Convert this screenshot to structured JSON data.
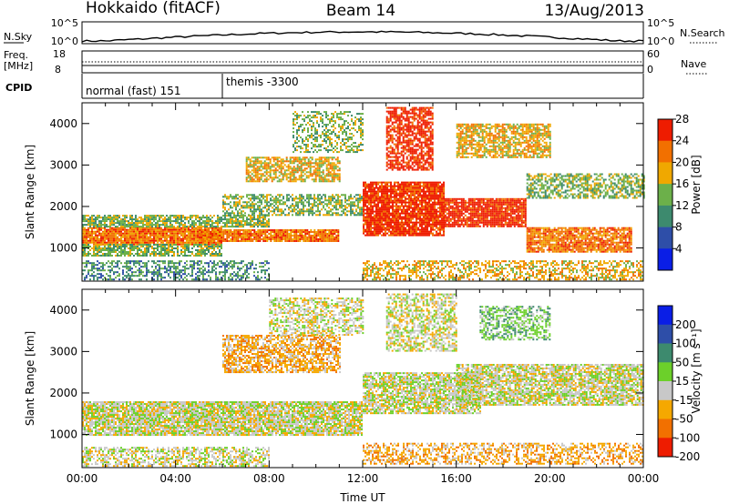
{
  "header": {
    "title_left": "Hokkaido (fitACF)",
    "title_center": "Beam 14",
    "title_right": "13/Aug/2013"
  },
  "strip_nsky": {
    "label": "N.Sky",
    "tick_top": "10^5",
    "tick_bottom": "10^0",
    "right_tick_top": "10^5",
    "right_tick_bottom": "10^0",
    "right_label": "N.Search"
  },
  "strip_freq": {
    "label_line1": "Freq.",
    "label_line2": "[MHz]",
    "tick_top": "18",
    "tick_bottom": "8",
    "right_tick_top": "60",
    "right_tick_bottom": "0",
    "right_label": "Nave"
  },
  "strip_cpid": {
    "label": "CPID",
    "segments": [
      {
        "text": "normal (fast) 151",
        "start_hour": 0
      },
      {
        "text": "themis -3300",
        "start_hour": 6
      }
    ]
  },
  "chart_data": [
    {
      "type": "heatmap",
      "name": "power-panel",
      "ylabel": "Slant Range [km]",
      "ylim": [
        200,
        4500
      ],
      "yticks": [
        "1000",
        "2000",
        "3000",
        "4000"
      ],
      "ytick_values": [
        1000,
        2000,
        3000,
        4000
      ],
      "xlim": [
        0,
        24
      ],
      "colorbar_label": "Power [dB]",
      "colorbar_ticks": [
        "4",
        "8",
        "12",
        "16",
        "20",
        "24",
        "28"
      ],
      "colorbar_colors": [
        "#0a1ee6",
        "#2e4ea8",
        "#3d8a6e",
        "#6cb04a",
        "#f0a800",
        "#f27000",
        "#ee1c00"
      ],
      "scatter_regions": [
        {
          "hours": [
            0,
            6
          ],
          "range": [
            1100,
            1500
          ],
          "level": 5,
          "density": 0.95
        },
        {
          "hours": [
            0,
            8
          ],
          "range": [
            1500,
            1800
          ],
          "level": 3,
          "density": 0.75
        },
        {
          "hours": [
            0,
            6
          ],
          "range": [
            800,
            1100
          ],
          "level": 3,
          "density": 0.75
        },
        {
          "hours": [
            0,
            8
          ],
          "range": [
            250,
            700
          ],
          "level": 2,
          "density": 0.5
        },
        {
          "hours": [
            5,
            11
          ],
          "range": [
            1150,
            1450
          ],
          "level": 5,
          "density": 0.9
        },
        {
          "hours": [
            6,
            12
          ],
          "range": [
            1800,
            2300
          ],
          "level": 3,
          "density": 0.6
        },
        {
          "hours": [
            7,
            11
          ],
          "range": [
            2600,
            3200
          ],
          "level": 4,
          "density": 0.7
        },
        {
          "hours": [
            9,
            12
          ],
          "range": [
            3300,
            4300
          ],
          "level": 3,
          "density": 0.45
        },
        {
          "hours": [
            12,
            15.5
          ],
          "range": [
            1300,
            2600
          ],
          "level": 6,
          "density": 0.9
        },
        {
          "hours": [
            13,
            15
          ],
          "range": [
            2900,
            4400
          ],
          "level": 6,
          "density": 0.7
        },
        {
          "hours": [
            15.5,
            19
          ],
          "range": [
            1500,
            2200
          ],
          "level": 6,
          "density": 0.9
        },
        {
          "hours": [
            19,
            23.5
          ],
          "range": [
            900,
            1500
          ],
          "level": 5,
          "density": 0.85
        },
        {
          "hours": [
            16,
            20
          ],
          "range": [
            3200,
            4000
          ],
          "level": 4,
          "density": 0.7
        },
        {
          "hours": [
            19,
            24
          ],
          "range": [
            2200,
            2800
          ],
          "level": 3,
          "density": 0.6
        },
        {
          "hours": [
            12,
            24
          ],
          "range": [
            250,
            700
          ],
          "level": 4,
          "density": 0.5
        }
      ]
    },
    {
      "type": "heatmap",
      "name": "velocity-panel",
      "ylabel": "Slant Range [km]",
      "ylim": [
        200,
        4500
      ],
      "yticks": [
        "1000",
        "2000",
        "3000",
        "4000"
      ],
      "ytick_values": [
        1000,
        2000,
        3000,
        4000
      ],
      "xlim": [
        0,
        24
      ],
      "xlabel": "Time UT",
      "xticks": [
        "00:00",
        "04:00",
        "08:00",
        "12:00",
        "16:00",
        "20:00",
        "00:00"
      ],
      "xtick_values": [
        0,
        4,
        8,
        12,
        16,
        20,
        24
      ],
      "colorbar_label": "Velocity [m s⁻¹]",
      "colorbar_ticks": [
        "200",
        "100",
        "50",
        "15",
        "-15",
        "-50",
        "-100",
        "-200"
      ],
      "colorbar_colors": [
        "#0a1ee6",
        "#2e4ea8",
        "#3d8a6e",
        "#6cd02a",
        "#c8c8c8",
        "#f5a800",
        "#f27000",
        "#ee1c00"
      ],
      "scatter_regions": [
        {
          "hours": [
            0,
            12
          ],
          "range": [
            1000,
            1800
          ],
          "level": 4,
          "density": 0.9
        },
        {
          "hours": [
            0,
            8
          ],
          "range": [
            250,
            700
          ],
          "level": 4,
          "density": 0.6
        },
        {
          "hours": [
            6,
            11
          ],
          "range": [
            2500,
            3400
          ],
          "level": 5,
          "density": 0.7
        },
        {
          "hours": [
            8,
            12
          ],
          "range": [
            3400,
            4300
          ],
          "level": 4,
          "density": 0.55
        },
        {
          "hours": [
            12,
            17
          ],
          "range": [
            1500,
            2500
          ],
          "level": 4,
          "density": 0.8
        },
        {
          "hours": [
            13,
            16
          ],
          "range": [
            3000,
            4400
          ],
          "level": 4,
          "density": 0.6
        },
        {
          "hours": [
            16,
            24
          ],
          "range": [
            1700,
            2700
          ],
          "level": 4,
          "density": 0.8
        },
        {
          "hours": [
            17,
            20
          ],
          "range": [
            3300,
            4100
          ],
          "level": 3,
          "density": 0.6
        },
        {
          "hours": [
            12,
            24
          ],
          "range": [
            300,
            800
          ],
          "level": 5,
          "density": 0.5
        }
      ]
    }
  ]
}
